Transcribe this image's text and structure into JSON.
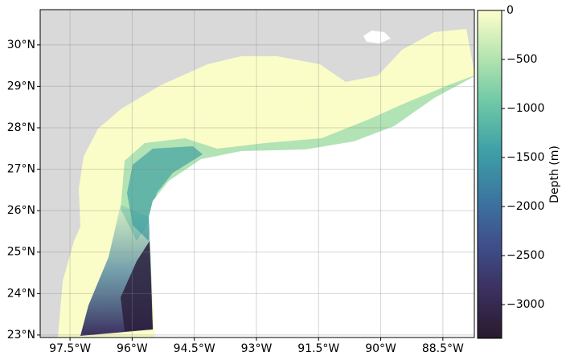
{
  "map": {
    "xlim": [
      -98.22,
      -87.74
    ],
    "ylim": [
      22.94,
      30.85
    ],
    "xticks": [
      {
        "value": -97.5,
        "label": "97.5°W"
      },
      {
        "value": -96,
        "label": "96°W"
      },
      {
        "value": -94.5,
        "label": "94.5°W"
      },
      {
        "value": -93,
        "label": "93°W"
      },
      {
        "value": -91.5,
        "label": "91.5°W"
      },
      {
        "value": -90,
        "label": "90°W"
      },
      {
        "value": -88.5,
        "label": "88.5°W"
      }
    ],
    "yticks": [
      {
        "value": 23,
        "label": "23°N"
      },
      {
        "value": 24,
        "label": "24°N"
      },
      {
        "value": 25,
        "label": "25°N"
      },
      {
        "value": 26,
        "label": "26°N"
      },
      {
        "value": 27,
        "label": "27°N"
      },
      {
        "value": 28,
        "label": "28°N"
      },
      {
        "value": 29,
        "label": "29°N"
      },
      {
        "value": 30,
        "label": "30°N"
      }
    ],
    "grid": true,
    "colorbar": {
      "label": "Depth (m)",
      "clim": [
        -3344,
        0
      ],
      "ticks": [
        0,
        {
          "value": -500,
          "label": "−500"
        },
        {
          "value": -1000,
          "label": "−1000"
        },
        {
          "value": -1500,
          "label": "−1500"
        },
        {
          "value": -2000,
          "label": "−2000"
        },
        {
          "value": -2500,
          "label": "−2500"
        },
        {
          "value": -3000,
          "label": "−3000"
        }
      ],
      "colormap": [
        "#281a2c",
        "#3b2f5e",
        "#3f4f8c",
        "#3b77a0",
        "#3ea0a6",
        "#6cc7a6",
        "#b5e4b0",
        "#fdfecc"
      ]
    }
  }
}
